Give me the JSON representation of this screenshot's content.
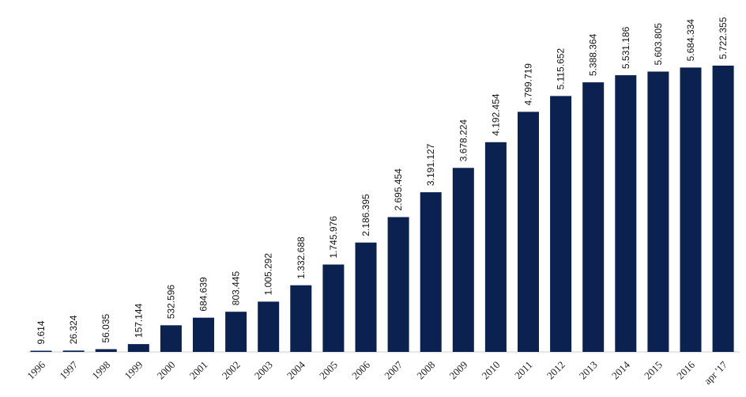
{
  "chart_data": {
    "type": "bar",
    "title": "",
    "xlabel": "",
    "ylabel": "",
    "categories": [
      "1996",
      "1997",
      "1998",
      "1999",
      "2000",
      "2001",
      "2002",
      "2003",
      "2004",
      "2005",
      "2006",
      "2007",
      "2008",
      "2009",
      "2010",
      "2011",
      "2012",
      "2013",
      "2014",
      "2015",
      "2016",
      "apr '17"
    ],
    "values": [
      9614,
      26324,
      56035,
      157144,
      532596,
      684639,
      803445,
      1005292,
      1332688,
      1745976,
      2186395,
      2695454,
      3191127,
      3678224,
      4192454,
      4799719,
      5115652,
      5388364,
      5531186,
      5603805,
      5684334,
      5722355
    ],
    "value_labels": [
      "9.614",
      "26.324",
      "56.035",
      "157.144",
      "532.596",
      "684.639",
      "803.445",
      "1.005.292",
      "1.332.688",
      "1.745.976",
      "2.186.395",
      "2.695.454",
      "3.191.127",
      "3.678.224",
      "4.192.454",
      "4.799.719",
      "5.115.652",
      "5.388.364",
      "5.531.186",
      "5.603.805",
      "5.684.334",
      "5.722.355"
    ],
    "ylim": [
      0,
      5722355
    ],
    "grid": false,
    "legend": "none",
    "bar_color": "#0b2150"
  }
}
